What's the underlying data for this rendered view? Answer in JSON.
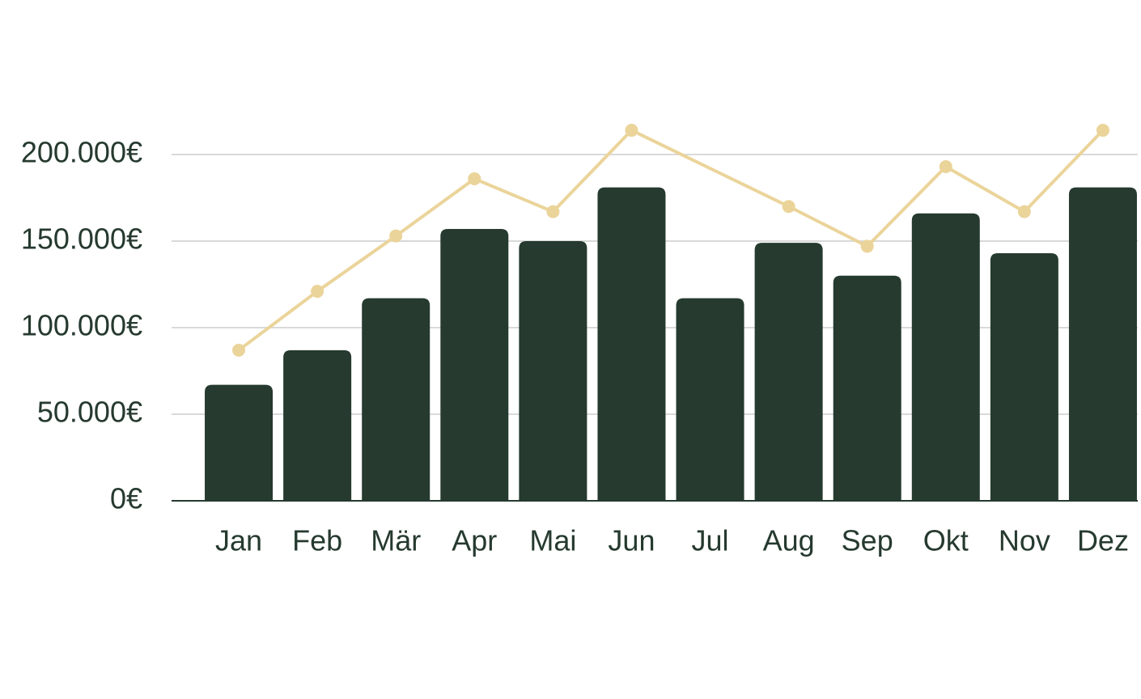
{
  "chart_data": {
    "type": "bar-line",
    "categories": [
      "Jan",
      "Feb",
      "Mär",
      "Apr",
      "Mai",
      "Jun",
      "Jul",
      "Aug",
      "Sep",
      "Okt",
      "Nov",
      "Dez"
    ],
    "series": [
      {
        "type": "bar",
        "color": "#263a2f",
        "values": [
          67000,
          87000,
          117000,
          157000,
          150000,
          181000,
          117000,
          149000,
          130000,
          166000,
          143000,
          181000
        ]
      },
      {
        "type": "line",
        "color": "#ebd49a",
        "span_gaps": true,
        "values": [
          87000,
          121000,
          153000,
          186000,
          167000,
          214000,
          null,
          170000,
          147000,
          193000,
          167000,
          214000
        ]
      }
    ],
    "ylim": [
      0,
      200000
    ],
    "yticks": [
      {
        "value": 0,
        "label": "0€"
      },
      {
        "value": 50000,
        "label": "50.000€"
      },
      {
        "value": 100000,
        "label": "100.000€"
      },
      {
        "value": 150000,
        "label": "150.000€"
      },
      {
        "value": 200000,
        "label": "200.000€"
      }
    ],
    "grid": true
  }
}
